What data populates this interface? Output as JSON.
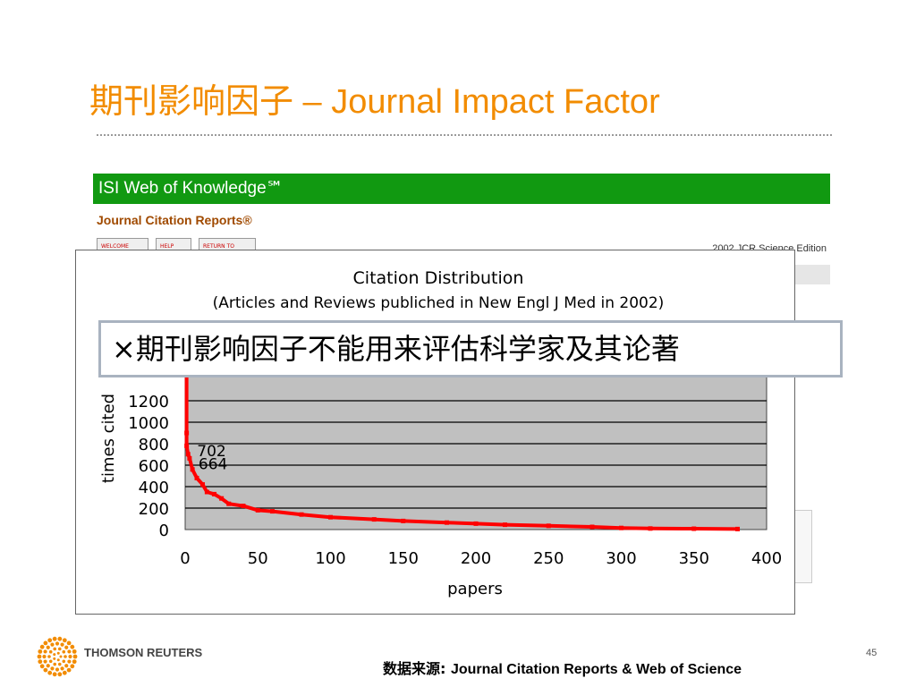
{
  "slide": {
    "title": "期刊影响因子 – Journal Impact Factor",
    "callout": "×期刊影响因子不能用来评估科学家及其论著",
    "source_label": "数据来源: ",
    "source_text": "Journal Citation Reports & Web of Science",
    "page_number": "45",
    "logo_text": "THOMSON REUTERS"
  },
  "isi": {
    "header": "ISI Web of Knowledge℠",
    "subheader": "Journal Citation Reports®",
    "buttons": [
      "WELCOME",
      "HELP",
      "RETURN TO"
    ],
    "edition": "2002 JCR Science Edition"
  },
  "colors": {
    "title": "#f28c00",
    "isi_green": "#119911",
    "plot_bg": "#c0c0c0",
    "series": "#ff0000"
  },
  "chart_data": {
    "type": "line",
    "title": "Citation Distribution",
    "subtitle": "(Articles and Reviews publiched in New Engl J Med in 2002)",
    "xlabel": "papers",
    "ylabel": "times cited",
    "xlim": [
      0,
      400
    ],
    "ylim": [
      0,
      1600
    ],
    "xticks": [
      0,
      50,
      100,
      150,
      200,
      250,
      300,
      350,
      400
    ],
    "yticks": [
      0,
      200,
      400,
      600,
      800,
      1000,
      1200
    ],
    "grid": true,
    "annotations": [
      {
        "text": "702",
        "x": 2,
        "y": 702
      },
      {
        "text": "664",
        "x": 3,
        "y": 664
      }
    ],
    "series": [
      {
        "x": [
          1,
          1,
          1,
          2,
          3,
          5,
          8,
          12,
          15,
          20,
          25,
          30,
          40,
          50,
          60,
          80,
          100,
          130,
          150,
          180,
          200,
          220,
          250,
          280,
          300,
          320,
          350,
          380
        ],
        "y": [
          1550,
          900,
          780,
          702,
          664,
          560,
          480,
          420,
          350,
          330,
          290,
          240,
          220,
          180,
          170,
          140,
          115,
          95,
          80,
          65,
          55,
          45,
          35,
          25,
          15,
          10,
          8,
          5
        ]
      }
    ]
  }
}
